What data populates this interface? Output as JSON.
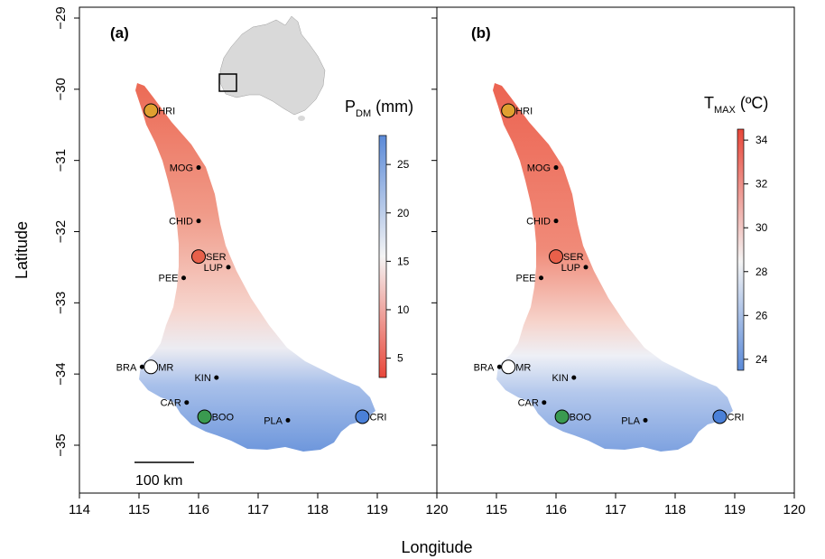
{
  "figure": {
    "xlabel": "Longitude",
    "ylabel": "Latitude",
    "x_ticks": [
      "114",
      "115",
      "116",
      "117",
      "118",
      "119",
      "120"
    ],
    "x_ticks_right": [
      "115",
      "116",
      "117",
      "118",
      "119",
      "120"
    ],
    "y_ticks": [
      "−29",
      "−30",
      "−31",
      "−32",
      "−33",
      "−34",
      "−35"
    ],
    "x_range": [
      114,
      120
    ],
    "y_range": [
      -35.6,
      -28.8
    ],
    "scale_bar_label": "100 km"
  },
  "panels": [
    {
      "id": "a",
      "label": "(a)",
      "variable_main": "P",
      "variable_sub": "DM",
      "variable_unit": " (mm)",
      "colorbar": {
        "min": 3,
        "max": 28,
        "ticks": [
          "5",
          "10",
          "15",
          "20",
          "25"
        ],
        "tick_values": [
          5,
          10,
          15,
          20,
          25
        ],
        "low_color": "#e8473a",
        "mid_color": "#f4f4f4",
        "high_color": "#5b8ad8"
      }
    },
    {
      "id": "b",
      "label": "(b)",
      "variable_main": "T",
      "variable_sub": "MAX",
      "variable_unit": " (ºC)",
      "colorbar": {
        "min": 23.5,
        "max": 34.5,
        "ticks": [
          "24",
          "26",
          "28",
          "30",
          "32",
          "34"
        ],
        "tick_values": [
          24,
          26,
          28,
          30,
          32,
          34
        ],
        "low_color": "#5b8ad8",
        "mid_color": "#f4f4f4",
        "high_color": "#e8473a"
      }
    }
  ],
  "sites": [
    {
      "code": "HRI",
      "lon": 115.2,
      "lat": -30.3,
      "marker": "large",
      "color": "#e0a030"
    },
    {
      "code": "MOG",
      "lon": 116.0,
      "lat": -31.1,
      "marker": "dot",
      "color": "#000000"
    },
    {
      "code": "CHID",
      "lon": 116.0,
      "lat": -31.85,
      "marker": "dot",
      "color": "#000000"
    },
    {
      "code": "SER",
      "lon": 116.0,
      "lat": -32.35,
      "marker": "large",
      "color": "#e8604a"
    },
    {
      "code": "LUP",
      "lon": 116.5,
      "lat": -32.5,
      "marker": "dot",
      "color": "#000000"
    },
    {
      "code": "PEE",
      "lon": 115.75,
      "lat": -32.65,
      "marker": "dot",
      "color": "#000000"
    },
    {
      "code": "BRA",
      "lon": 115.05,
      "lat": -33.9,
      "marker": "dot",
      "color": "#000000"
    },
    {
      "code": "MR",
      "lon": 115.2,
      "lat": -33.9,
      "marker": "large",
      "color": "#ffffff"
    },
    {
      "code": "KIN",
      "lon": 116.3,
      "lat": -34.05,
      "marker": "dot",
      "color": "#000000"
    },
    {
      "code": "CAR",
      "lon": 115.8,
      "lat": -34.4,
      "marker": "dot",
      "color": "#000000"
    },
    {
      "code": "BOO",
      "lon": 116.1,
      "lat": -34.6,
      "marker": "large",
      "color": "#3a9a50"
    },
    {
      "code": "PLA",
      "lon": 117.5,
      "lat": -34.65,
      "marker": "dot",
      "color": "#000000"
    },
    {
      "code": "CRI",
      "lon": 118.75,
      "lat": -34.6,
      "marker": "large",
      "color": "#4a80d8"
    }
  ],
  "inset": {
    "description_name": "australia-inset-map",
    "fill": "#d9d9d9"
  }
}
